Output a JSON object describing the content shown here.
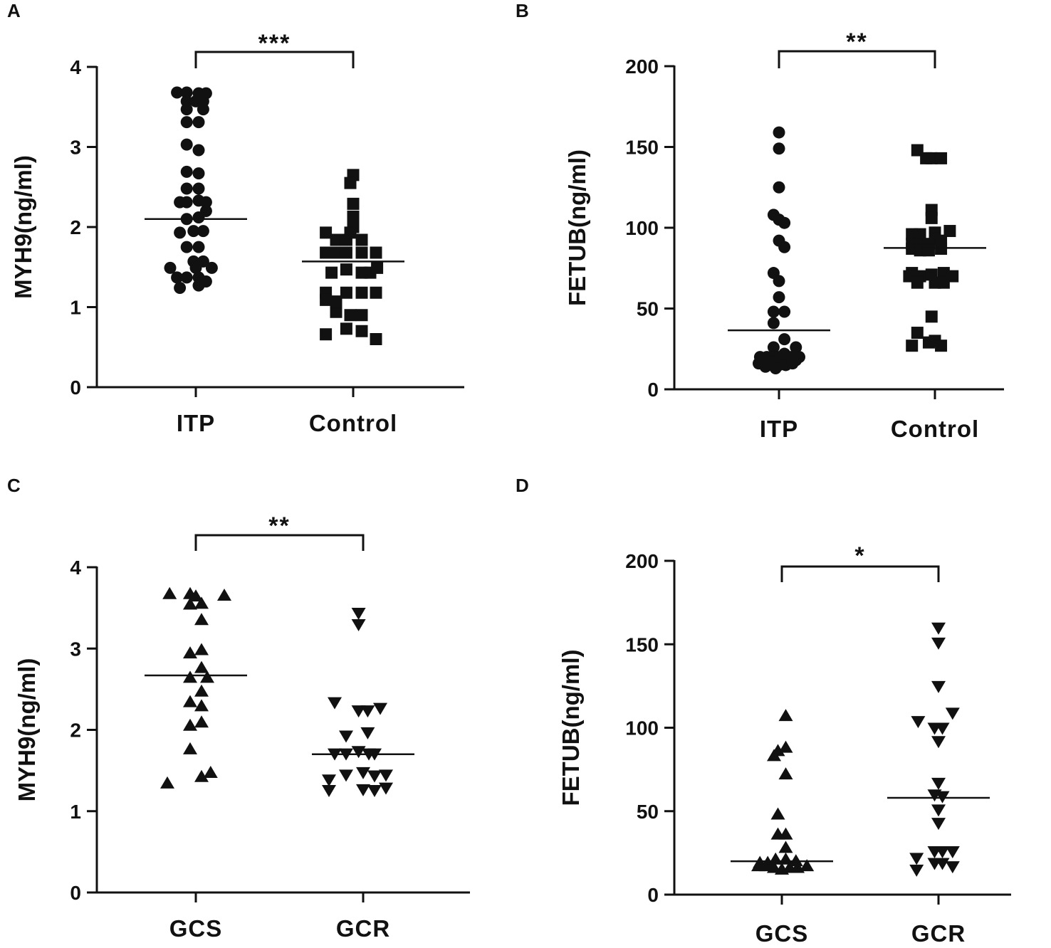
{
  "chart_data": [
    {
      "panel": "A",
      "type": "scatter",
      "ylabel": "MYH9(ng/ml)",
      "ylim": [
        0,
        4
      ],
      "yticks": [
        0,
        1,
        2,
        3,
        4
      ],
      "significance": "***",
      "categories": [
        "ITP",
        "Control"
      ],
      "series": [
        {
          "name": "ITP",
          "marker": "circle",
          "mean": 2.1,
          "points": [
            {
              "x": -0.33,
              "y": 3.68
            },
            {
              "x": -0.16,
              "y": 3.68
            },
            {
              "x": 0.05,
              "y": 3.67
            },
            {
              "x": 0.18,
              "y": 3.67
            },
            {
              "x": -0.16,
              "y": 3.57
            },
            {
              "x": 0.0,
              "y": 3.57
            },
            {
              "x": 0.13,
              "y": 3.57
            },
            {
              "x": -0.16,
              "y": 3.47
            },
            {
              "x": 0.13,
              "y": 3.47
            },
            {
              "x": -0.16,
              "y": 3.31
            },
            {
              "x": 0.05,
              "y": 3.31
            },
            {
              "x": -0.16,
              "y": 3.03
            },
            {
              "x": 0.05,
              "y": 2.96
            },
            {
              "x": -0.16,
              "y": 2.69
            },
            {
              "x": 0.05,
              "y": 2.67
            },
            {
              "x": -0.16,
              "y": 2.48
            },
            {
              "x": 0.05,
              "y": 2.48
            },
            {
              "x": -0.28,
              "y": 2.31
            },
            {
              "x": -0.16,
              "y": 2.31
            },
            {
              "x": 0.05,
              "y": 2.33
            },
            {
              "x": 0.18,
              "y": 2.31
            },
            {
              "x": -0.16,
              "y": 2.1
            },
            {
              "x": 0.05,
              "y": 2.12
            },
            {
              "x": 0.18,
              "y": 2.2
            },
            {
              "x": -0.28,
              "y": 1.93
            },
            {
              "x": -0.04,
              "y": 1.95
            },
            {
              "x": 0.13,
              "y": 1.95
            },
            {
              "x": -0.16,
              "y": 1.75
            },
            {
              "x": 0.05,
              "y": 1.75
            },
            {
              "x": -0.04,
              "y": 1.57
            },
            {
              "x": 0.13,
              "y": 1.57
            },
            {
              "x": -0.45,
              "y": 1.49
            },
            {
              "x": 0.0,
              "y": 1.49
            },
            {
              "x": 0.28,
              "y": 1.49
            },
            {
              "x": -0.33,
              "y": 1.37
            },
            {
              "x": -0.16,
              "y": 1.37
            },
            {
              "x": 0.05,
              "y": 1.37
            },
            {
              "x": 0.18,
              "y": 1.32
            },
            {
              "x": -0.28,
              "y": 1.24
            },
            {
              "x": 0.05,
              "y": 1.27
            }
          ]
        },
        {
          "name": "Control",
          "marker": "square",
          "mean": 1.57,
          "points": [
            {
              "x": 0.0,
              "y": 2.65
            },
            {
              "x": -0.05,
              "y": 2.55
            },
            {
              "x": 0.0,
              "y": 2.29
            },
            {
              "x": 0.0,
              "y": 2.13
            },
            {
              "x": 0.0,
              "y": 2.0
            },
            {
              "x": -0.48,
              "y": 1.93
            },
            {
              "x": -0.3,
              "y": 1.84
            },
            {
              "x": -0.12,
              "y": 1.84
            },
            {
              "x": -0.05,
              "y": 1.93
            },
            {
              "x": 0.15,
              "y": 1.84
            },
            {
              "x": -0.48,
              "y": 1.68
            },
            {
              "x": -0.3,
              "y": 1.68
            },
            {
              "x": -0.12,
              "y": 1.68
            },
            {
              "x": 0.15,
              "y": 1.68
            },
            {
              "x": 0.4,
              "y": 1.68
            },
            {
              "x": -0.38,
              "y": 1.43
            },
            {
              "x": -0.12,
              "y": 1.47
            },
            {
              "x": 0.15,
              "y": 1.43
            },
            {
              "x": 0.3,
              "y": 1.43
            },
            {
              "x": 0.42,
              "y": 1.49
            },
            {
              "x": -0.48,
              "y": 1.18
            },
            {
              "x": -0.12,
              "y": 1.18
            },
            {
              "x": 0.15,
              "y": 1.18
            },
            {
              "x": 0.4,
              "y": 1.18
            },
            {
              "x": -0.48,
              "y": 1.09
            },
            {
              "x": -0.3,
              "y": 0.94
            },
            {
              "x": -0.05,
              "y": 0.9
            },
            {
              "x": 0.15,
              "y": 0.9
            },
            {
              "x": -0.3,
              "y": 1.07
            },
            {
              "x": -0.12,
              "y": 0.73
            },
            {
              "x": 0.15,
              "y": 0.7
            },
            {
              "x": -0.48,
              "y": 0.66
            },
            {
              "x": 0.4,
              "y": 0.6
            }
          ]
        }
      ]
    },
    {
      "panel": "B",
      "type": "scatter",
      "ylabel": "FETUB(ng/ml)",
      "ylim": [
        0,
        200
      ],
      "yticks": [
        0,
        50,
        100,
        150,
        200
      ],
      "significance": "**",
      "categories": [
        "ITP",
        "Control"
      ],
      "series": [
        {
          "name": "ITP",
          "marker": "circle",
          "mean": 36.5,
          "points": [
            {
              "x": 0.0,
              "y": 159
            },
            {
              "x": 0.0,
              "y": 149
            },
            {
              "x": 0.0,
              "y": 125
            },
            {
              "x": -0.08,
              "y": 108
            },
            {
              "x": 0.0,
              "y": 105
            },
            {
              "x": 0.08,
              "y": 103
            },
            {
              "x": 0.0,
              "y": 92
            },
            {
              "x": 0.08,
              "y": 88
            },
            {
              "x": -0.08,
              "y": 72
            },
            {
              "x": 0.0,
              "y": 67
            },
            {
              "x": 0.0,
              "y": 57
            },
            {
              "x": -0.08,
              "y": 48
            },
            {
              "x": 0.08,
              "y": 48
            },
            {
              "x": -0.08,
              "y": 41
            },
            {
              "x": 0.08,
              "y": 31
            },
            {
              "x": -0.08,
              "y": 26
            },
            {
              "x": 0.25,
              "y": 26
            },
            {
              "x": -0.28,
              "y": 20
            },
            {
              "x": -0.18,
              "y": 20
            },
            {
              "x": -0.08,
              "y": 20
            },
            {
              "x": 0.0,
              "y": 20
            },
            {
              "x": 0.08,
              "y": 22
            },
            {
              "x": 0.18,
              "y": 20
            },
            {
              "x": 0.3,
              "y": 20
            },
            {
              "x": -0.3,
              "y": 16
            },
            {
              "x": -0.2,
              "y": 14
            },
            {
              "x": -0.1,
              "y": 17
            },
            {
              "x": 0.0,
              "y": 15
            },
            {
              "x": 0.1,
              "y": 15
            },
            {
              "x": 0.2,
              "y": 16
            },
            {
              "x": 0.25,
              "y": 18
            },
            {
              "x": -0.05,
              "y": 13
            }
          ]
        },
        {
          "name": "Control",
          "marker": "square",
          "mean": 87.5,
          "points": [
            {
              "x": -0.26,
              "y": 148
            },
            {
              "x": -0.13,
              "y": 143
            },
            {
              "x": -0.05,
              "y": 143
            },
            {
              "x": 0.09,
              "y": 143
            },
            {
              "x": -0.05,
              "y": 111
            },
            {
              "x": -0.05,
              "y": 106
            },
            {
              "x": -0.34,
              "y": 96
            },
            {
              "x": -0.22,
              "y": 96
            },
            {
              "x": 0.0,
              "y": 97
            },
            {
              "x": 0.22,
              "y": 98
            },
            {
              "x": -0.34,
              "y": 90
            },
            {
              "x": -0.22,
              "y": 90
            },
            {
              "x": -0.09,
              "y": 90
            },
            {
              "x": 0.0,
              "y": 93
            },
            {
              "x": 0.09,
              "y": 92
            },
            {
              "x": -0.34,
              "y": 87
            },
            {
              "x": -0.22,
              "y": 86
            },
            {
              "x": -0.09,
              "y": 86
            },
            {
              "x": 0.09,
              "y": 87
            },
            {
              "x": -0.34,
              "y": 72
            },
            {
              "x": -0.22,
              "y": 70
            },
            {
              "x": -0.05,
              "y": 71
            },
            {
              "x": 0.13,
              "y": 72
            },
            {
              "x": 0.26,
              "y": 70
            },
            {
              "x": -0.38,
              "y": 70
            },
            {
              "x": -0.26,
              "y": 66
            },
            {
              "x": 0.0,
              "y": 66
            },
            {
              "x": 0.13,
              "y": 66
            },
            {
              "x": -0.05,
              "y": 45
            },
            {
              "x": -0.26,
              "y": 35
            },
            {
              "x": -0.34,
              "y": 27
            },
            {
              "x": -0.09,
              "y": 29
            },
            {
              "x": 0.0,
              "y": 30
            },
            {
              "x": 0.09,
              "y": 27
            }
          ]
        }
      ]
    },
    {
      "panel": "C",
      "type": "scatter",
      "ylabel": "MYH9(ng/ml)",
      "ylim": [
        0,
        4
      ],
      "yticks": [
        0,
        1,
        2,
        3,
        4
      ],
      "significance": "**",
      "categories": [
        "GCS",
        "GCR"
      ],
      "series": [
        {
          "name": "GCS",
          "marker": "triangle-up",
          "mean": 2.67,
          "points": [
            {
              "x": -0.46,
              "y": 3.67
            },
            {
              "x": -0.1,
              "y": 3.67
            },
            {
              "x": 0.0,
              "y": 3.64
            },
            {
              "x": 0.5,
              "y": 3.65
            },
            {
              "x": -0.1,
              "y": 3.54
            },
            {
              "x": 0.1,
              "y": 3.55
            },
            {
              "x": 0.1,
              "y": 3.35
            },
            {
              "x": -0.1,
              "y": 2.94
            },
            {
              "x": 0.1,
              "y": 2.98
            },
            {
              "x": -0.1,
              "y": 2.64
            },
            {
              "x": 0.1,
              "y": 2.76
            },
            {
              "x": 0.2,
              "y": 2.64
            },
            {
              "x": 0.1,
              "y": 2.47
            },
            {
              "x": -0.1,
              "y": 2.34
            },
            {
              "x": 0.1,
              "y": 2.29
            },
            {
              "x": -0.1,
              "y": 2.05
            },
            {
              "x": 0.1,
              "y": 2.09
            },
            {
              "x": -0.1,
              "y": 1.76
            },
            {
              "x": -0.5,
              "y": 1.34
            },
            {
              "x": 0.1,
              "y": 1.42
            },
            {
              "x": 0.26,
              "y": 1.47
            }
          ]
        },
        {
          "name": "GCR",
          "marker": "triangle-down",
          "mean": 1.7,
          "points": [
            {
              "x": -0.08,
              "y": 3.44
            },
            {
              "x": -0.08,
              "y": 3.3
            },
            {
              "x": -0.5,
              "y": 2.34
            },
            {
              "x": -0.08,
              "y": 2.24
            },
            {
              "x": 0.08,
              "y": 2.24
            },
            {
              "x": 0.3,
              "y": 2.27
            },
            {
              "x": -0.3,
              "y": 1.93
            },
            {
              "x": 0.08,
              "y": 1.97
            },
            {
              "x": -0.5,
              "y": 1.71
            },
            {
              "x": -0.3,
              "y": 1.71
            },
            {
              "x": -0.08,
              "y": 1.74
            },
            {
              "x": 0.1,
              "y": 1.71
            },
            {
              "x": 0.2,
              "y": 1.71
            },
            {
              "x": -0.6,
              "y": 1.39
            },
            {
              "x": -0.3,
              "y": 1.45
            },
            {
              "x": 0.0,
              "y": 1.48
            },
            {
              "x": 0.2,
              "y": 1.44
            },
            {
              "x": 0.4,
              "y": 1.45
            },
            {
              "x": -0.6,
              "y": 1.26
            },
            {
              "x": 0.0,
              "y": 1.27
            },
            {
              "x": 0.2,
              "y": 1.26
            },
            {
              "x": 0.4,
              "y": 1.29
            }
          ]
        }
      ]
    },
    {
      "panel": "D",
      "type": "scatter",
      "ylabel": "FETUB(ng/ml)",
      "ylim": [
        0,
        200
      ],
      "yticks": [
        0,
        50,
        100,
        150,
        200
      ],
      "significance": "*",
      "categories": [
        "GCS",
        "GCR"
      ],
      "series": [
        {
          "name": "GCS",
          "marker": "triangle-up",
          "mean": 20,
          "points": [
            {
              "x": 0.05,
              "y": 107
            },
            {
              "x": -0.05,
              "y": 86
            },
            {
              "x": 0.05,
              "y": 88
            },
            {
              "x": -0.1,
              "y": 83
            },
            {
              "x": 0.05,
              "y": 72
            },
            {
              "x": -0.05,
              "y": 48
            },
            {
              "x": -0.05,
              "y": 36
            },
            {
              "x": 0.05,
              "y": 36
            },
            {
              "x": 0.05,
              "y": 28
            },
            {
              "x": -0.28,
              "y": 19
            },
            {
              "x": -0.18,
              "y": 19
            },
            {
              "x": -0.08,
              "y": 21
            },
            {
              "x": 0.05,
              "y": 21
            },
            {
              "x": 0.18,
              "y": 20
            },
            {
              "x": -0.3,
              "y": 17
            },
            {
              "x": -0.2,
              "y": 17
            },
            {
              "x": -0.1,
              "y": 16
            },
            {
              "x": 0.0,
              "y": 15
            },
            {
              "x": 0.1,
              "y": 16
            },
            {
              "x": 0.2,
              "y": 16
            },
            {
              "x": 0.32,
              "y": 17
            }
          ]
        },
        {
          "name": "GCR",
          "marker": "triangle-down",
          "mean": 58,
          "points": [
            {
              "x": 0.0,
              "y": 160
            },
            {
              "x": 0.0,
              "y": 151
            },
            {
              "x": 0.0,
              "y": 125
            },
            {
              "x": -0.26,
              "y": 104
            },
            {
              "x": 0.18,
              "y": 109
            },
            {
              "x": -0.05,
              "y": 100
            },
            {
              "x": 0.05,
              "y": 100
            },
            {
              "x": 0.0,
              "y": 92
            },
            {
              "x": 0.0,
              "y": 67
            },
            {
              "x": -0.05,
              "y": 60
            },
            {
              "x": 0.05,
              "y": 59
            },
            {
              "x": 0.0,
              "y": 51
            },
            {
              "x": 0.0,
              "y": 43
            },
            {
              "x": -0.05,
              "y": 26
            },
            {
              "x": 0.05,
              "y": 26
            },
            {
              "x": 0.18,
              "y": 26
            },
            {
              "x": -0.28,
              "y": 22
            },
            {
              "x": -0.05,
              "y": 19
            },
            {
              "x": 0.05,
              "y": 19
            },
            {
              "x": -0.28,
              "y": 15
            },
            {
              "x": 0.18,
              "y": 17
            }
          ]
        }
      ]
    }
  ]
}
